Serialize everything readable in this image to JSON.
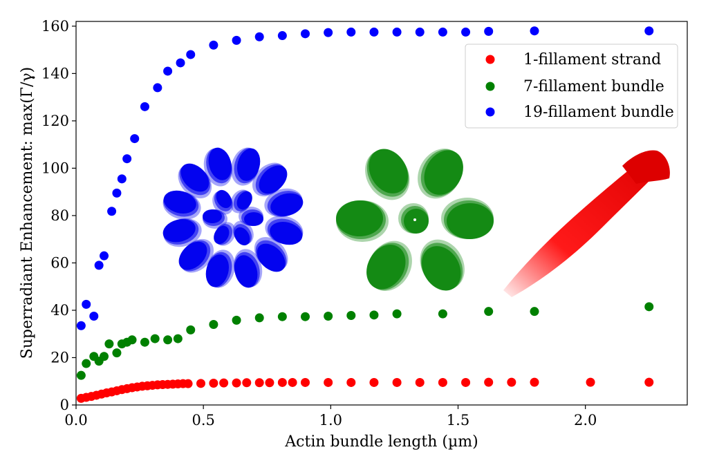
{
  "chart_data": {
    "type": "scatter",
    "title": "",
    "xlabel": "Actin bundle length (µm)",
    "ylabel": "Superradiant Enhancement: max(Γ/γ)",
    "xlim": [
      0.0,
      2.4
    ],
    "ylim": [
      0,
      162
    ],
    "x_ticks": [
      0.0,
      0.5,
      1.0,
      1.5,
      2.0
    ],
    "x_tick_labels": [
      "0.0",
      "0.5",
      "1.0",
      "1.5",
      "2.0"
    ],
    "y_ticks": [
      0,
      20,
      40,
      60,
      80,
      100,
      120,
      140,
      160
    ],
    "y_tick_labels": [
      "0",
      "20",
      "40",
      "60",
      "80",
      "100",
      "120",
      "140",
      "160"
    ],
    "grid": false,
    "legend_position": "top-right",
    "series": [
      {
        "name": "1-fillament strand",
        "color": "#ff0000",
        "x": [
          0.02,
          0.04,
          0.06,
          0.08,
          0.1,
          0.12,
          0.14,
          0.16,
          0.18,
          0.2,
          0.22,
          0.24,
          0.26,
          0.28,
          0.3,
          0.32,
          0.34,
          0.36,
          0.38,
          0.4,
          0.42,
          0.44,
          0.49,
          0.54,
          0.58,
          0.63,
          0.67,
          0.72,
          0.76,
          0.81,
          0.85,
          0.9,
          0.99,
          1.08,
          1.17,
          1.26,
          1.35,
          1.44,
          1.53,
          1.62,
          1.71,
          1.8,
          2.02,
          2.25
        ],
        "y": [
          2.8,
          3.2,
          3.6,
          4.1,
          4.6,
          5.1,
          5.5,
          6.0,
          6.5,
          6.9,
          7.3,
          7.6,
          7.9,
          8.1,
          8.3,
          8.5,
          8.6,
          8.7,
          8.8,
          8.9,
          9.0,
          9.0,
          9.1,
          9.2,
          9.3,
          9.3,
          9.4,
          9.4,
          9.4,
          9.5,
          9.5,
          9.5,
          9.5,
          9.5,
          9.5,
          9.5,
          9.5,
          9.5,
          9.5,
          9.6,
          9.6,
          9.6,
          9.6,
          9.6
        ]
      },
      {
        "name": "7-fillament bundle",
        "color": "#008000",
        "x": [
          0.02,
          0.04,
          0.07,
          0.09,
          0.11,
          0.13,
          0.16,
          0.18,
          0.2,
          0.22,
          0.27,
          0.31,
          0.36,
          0.4,
          0.45,
          0.54,
          0.63,
          0.72,
          0.81,
          0.9,
          0.99,
          1.08,
          1.17,
          1.26,
          1.44,
          1.62,
          1.8,
          2.25
        ],
        "y": [
          12.5,
          17.5,
          20.5,
          18.5,
          20.5,
          25.8,
          22.0,
          25.8,
          26.5,
          27.5,
          26.5,
          28.0,
          27.5,
          28.0,
          31.7,
          34.0,
          35.8,
          36.8,
          37.3,
          37.3,
          37.5,
          37.8,
          38.0,
          38.5,
          38.5,
          39.5,
          39.5,
          41.5
        ]
      },
      {
        "name": "19-fillament bundle",
        "color": "#0000ff",
        "x": [
          0.02,
          0.04,
          0.07,
          0.09,
          0.11,
          0.14,
          0.16,
          0.18,
          0.2,
          0.23,
          0.27,
          0.32,
          0.36,
          0.41,
          0.45,
          0.54,
          0.63,
          0.72,
          0.81,
          0.9,
          0.99,
          1.08,
          1.17,
          1.26,
          1.35,
          1.44,
          1.53,
          1.62,
          1.8,
          2.25
        ],
        "y": [
          33.5,
          42.5,
          37.5,
          59.0,
          63.0,
          81.8,
          89.5,
          95.5,
          104.0,
          112.5,
          126.0,
          134.0,
          141.0,
          144.5,
          148.0,
          152.0,
          154.0,
          155.5,
          156.0,
          156.8,
          157.3,
          157.5,
          157.5,
          157.5,
          157.5,
          157.5,
          157.5,
          157.8,
          158.0,
          158.0
        ]
      }
    ]
  }
}
